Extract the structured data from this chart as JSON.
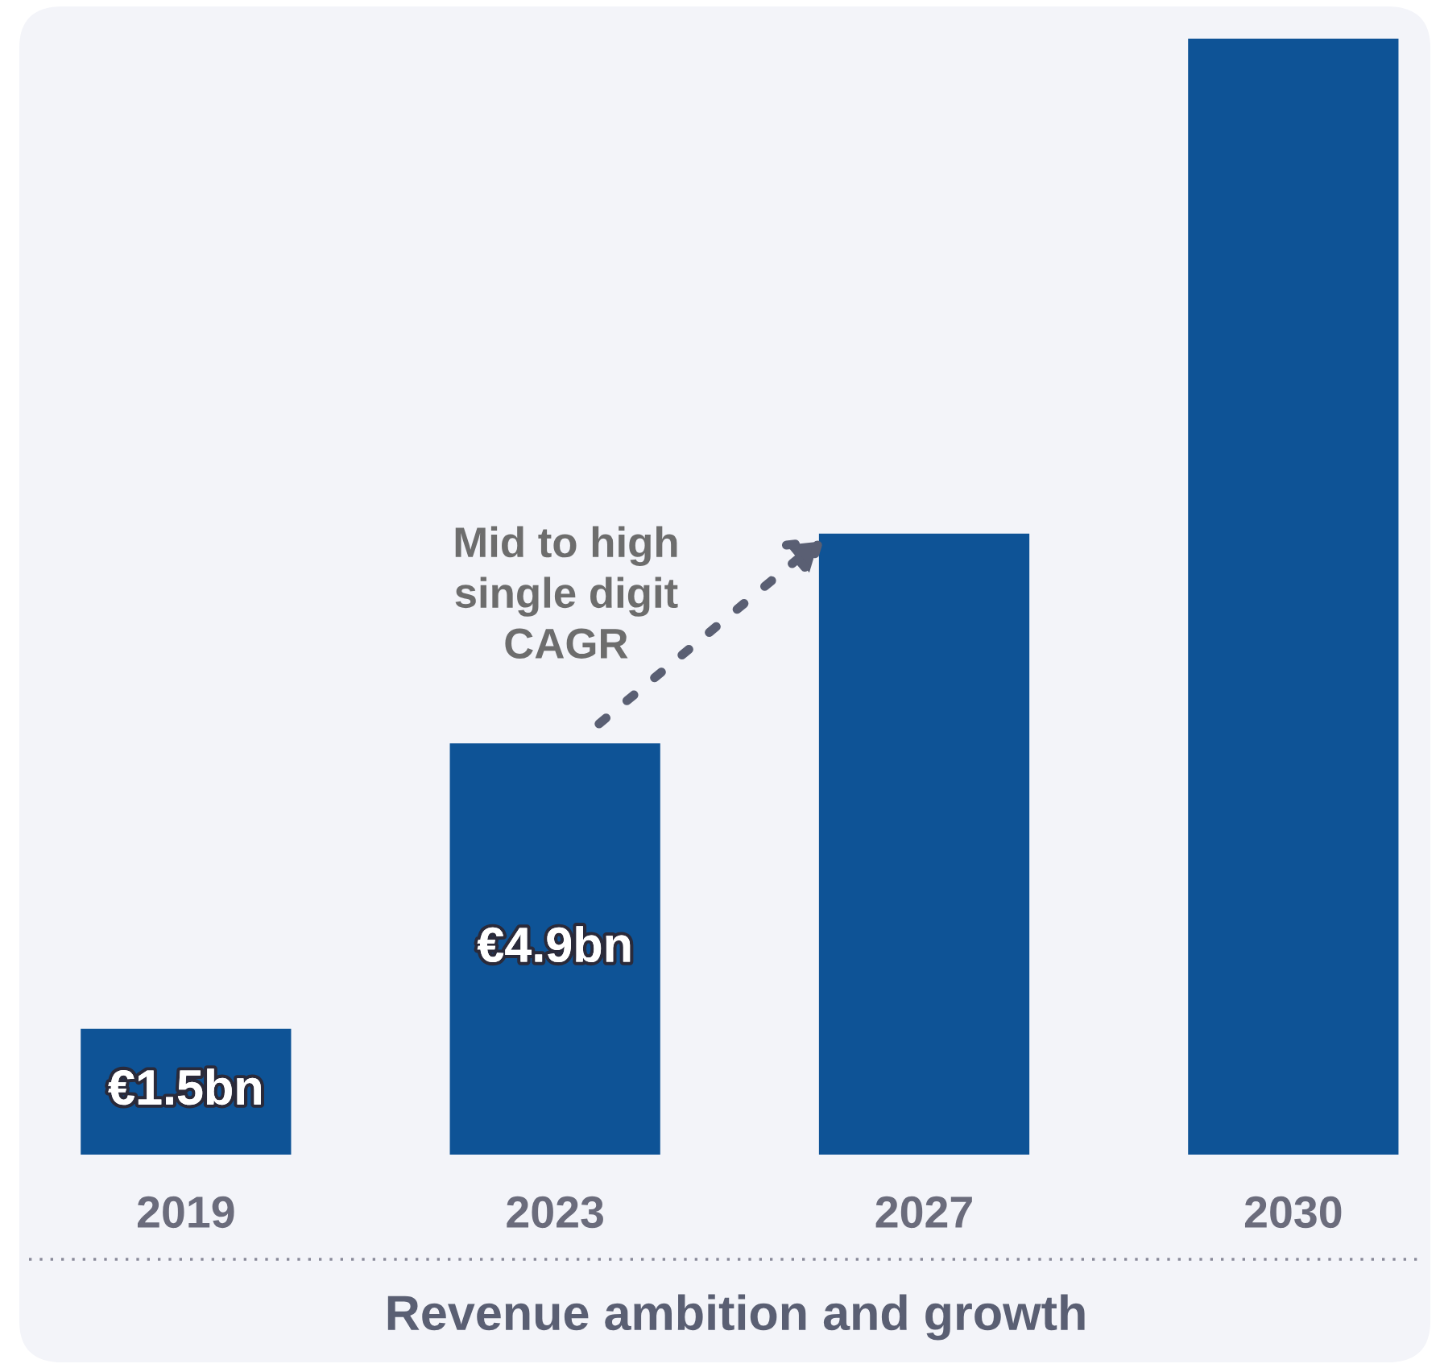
{
  "chart_data": {
    "type": "bar",
    "title": "Revenue ambition and growth",
    "categories": [
      "2019",
      "2023",
      "2027",
      "2030"
    ],
    "values": [
      1.5,
      4.9,
      7.4,
      13.3
    ],
    "color": "#0e5396",
    "value_labels": [
      "€1.5bn",
      "€4.9bn",
      null,
      null
    ],
    "annotations": [
      "Mid to high\nsingle digit\nCAGR"
    ]
  }
}
